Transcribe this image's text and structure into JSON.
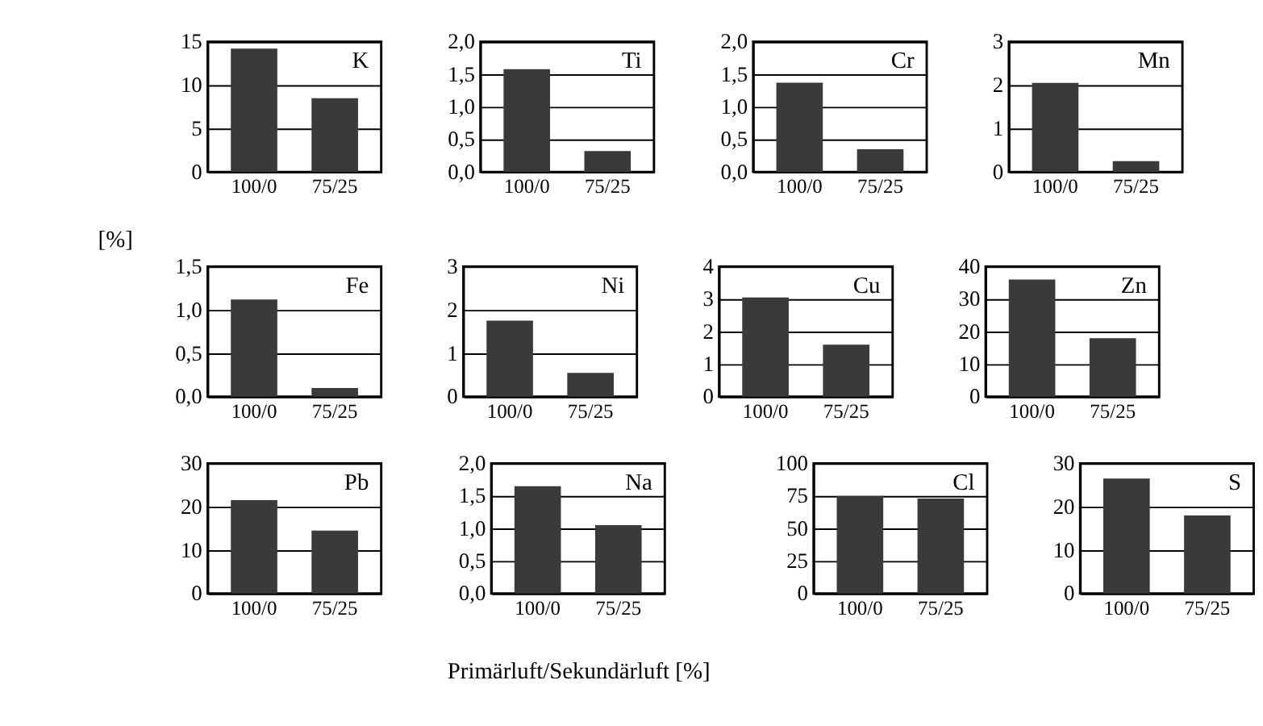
{
  "chart_data": [
    {
      "type": "bar",
      "title": "K",
      "categories": [
        "100/0",
        "75/25"
      ],
      "values": [
        14.2,
        8.5
      ],
      "color": "#3a3a3a",
      "ylim": [
        0,
        15
      ],
      "yticks": [
        0,
        5,
        10,
        15
      ],
      "grid": "y"
    },
    {
      "type": "bar",
      "title": "Ti",
      "categories": [
        "100/0",
        "75/25"
      ],
      "values": [
        1.58,
        0.32
      ],
      "color": "#3a3a3a",
      "ylim": [
        0,
        2
      ],
      "yticks": [
        {
          "value": 0,
          "label": "0,0"
        },
        {
          "value": 0.5,
          "label": "0,5"
        },
        {
          "value": 1,
          "label": "1,0"
        },
        {
          "value": 1.5,
          "label": "1,5"
        },
        {
          "value": 2,
          "label": "2,0"
        }
      ],
      "grid": "y"
    },
    {
      "type": "bar",
      "title": "Cr",
      "categories": [
        "100/0",
        "75/25"
      ],
      "values": [
        1.37,
        0.35
      ],
      "color": "#3a3a3a",
      "ylim": [
        0,
        2
      ],
      "yticks": [
        {
          "value": 0,
          "label": "0,0"
        },
        {
          "value": 0.5,
          "label": "0,5"
        },
        {
          "value": 1,
          "label": "1,0"
        },
        {
          "value": 1.5,
          "label": "1,5"
        },
        {
          "value": 2,
          "label": "2,0"
        }
      ],
      "grid": "y"
    },
    {
      "type": "bar",
      "title": "Mn",
      "categories": [
        "100/0",
        "75/25"
      ],
      "values": [
        2.05,
        0.25
      ],
      "color": "#3a3a3a",
      "ylim": [
        0,
        3
      ],
      "yticks": [
        0,
        1,
        2,
        3
      ],
      "grid": "y"
    },
    {
      "type": "bar",
      "title": "Fe",
      "ylabel": "[%]",
      "categories": [
        "100/0",
        "75/25"
      ],
      "values": [
        1.12,
        0.1
      ],
      "color": "#3a3a3a",
      "ylim": [
        0,
        1.5
      ],
      "yticks": [
        {
          "value": 0,
          "label": "0,0"
        },
        {
          "value": 0.5,
          "label": "0,5"
        },
        {
          "value": 1,
          "label": "1,0"
        },
        {
          "value": 1.5,
          "label": "1,5"
        }
      ],
      "grid": "y"
    },
    {
      "type": "bar",
      "title": "Ni",
      "categories": [
        "100/0",
        "75/25"
      ],
      "values": [
        1.75,
        0.55
      ],
      "color": "#3a3a3a",
      "ylim": [
        0,
        3
      ],
      "yticks": [
        0,
        1,
        2,
        3
      ],
      "grid": "y"
    },
    {
      "type": "bar",
      "title": "Cu",
      "categories": [
        "100/0",
        "75/25"
      ],
      "values": [
        3.05,
        1.6
      ],
      "color": "#3a3a3a",
      "ylim": [
        0,
        4
      ],
      "yticks": [
        0,
        1,
        2,
        3,
        4
      ],
      "grid": "y"
    },
    {
      "type": "bar",
      "title": "Zn",
      "categories": [
        "100/0",
        "75/25"
      ],
      "values": [
        36,
        18
      ],
      "color": "#3a3a3a",
      "ylim": [
        0,
        40
      ],
      "yticks": [
        0,
        10,
        20,
        30,
        40
      ],
      "grid": "y"
    },
    {
      "type": "bar",
      "title": "Pb",
      "categories": [
        "100/0",
        "75/25"
      ],
      "values": [
        21.5,
        14.5
      ],
      "color": "#3a3a3a",
      "ylim": [
        0,
        30
      ],
      "yticks": [
        0,
        10,
        20,
        30
      ],
      "grid": "y"
    },
    {
      "type": "bar",
      "title": "Na",
      "xlabel": "Primärluft/Sekundärluft [%]",
      "categories": [
        "100/0",
        "75/25"
      ],
      "values": [
        1.65,
        1.05
      ],
      "color": "#3a3a3a",
      "ylim": [
        0,
        2
      ],
      "yticks": [
        {
          "value": 0,
          "label": "0,0"
        },
        {
          "value": 0.5,
          "label": "0,5"
        },
        {
          "value": 1,
          "label": "1,0"
        },
        {
          "value": 1.5,
          "label": "1,5"
        },
        {
          "value": 2,
          "label": "2,0"
        }
      ],
      "grid": "y"
    },
    {
      "type": "bar",
      "title": "Cl",
      "categories": [
        "100/0",
        "75/25"
      ],
      "values": [
        75,
        73
      ],
      "color": "#3a3a3a",
      "ylim": [
        0,
        100
      ],
      "yticks": [
        0,
        25,
        50,
        75,
        100
      ],
      "grid": "y"
    },
    {
      "type": "bar",
      "title": "S",
      "categories": [
        "100/0",
        "75/25"
      ],
      "values": [
        26.5,
        18
      ],
      "color": "#3a3a3a",
      "ylim": [
        0,
        30
      ],
      "yticks": [
        0,
        10,
        20,
        30
      ],
      "grid": "y"
    }
  ]
}
